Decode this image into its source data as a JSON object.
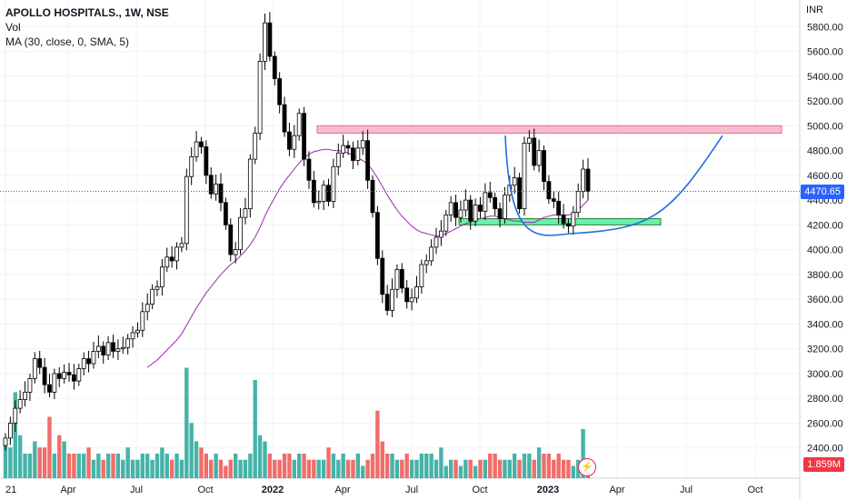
{
  "header": {
    "symbol": "APOLLO HOSPITALS., 1W, NSE",
    "volume_label": "Vol",
    "ma_label": "MA (30, close, 0, SMA, 5)"
  },
  "axis": {
    "currency": "INR",
    "last_price": "4470.65",
    "last_volume": "1.859M"
  },
  "colors": {
    "up": "#26a69a",
    "down": "#000000",
    "vol_up": "#26a69a",
    "vol_down": "#ef5350",
    "ma": "#9c27b0",
    "resistance": "#f8bbd0",
    "support": "#69f0ae",
    "arc": "#1e6fe0"
  },
  "chart_data": {
    "type": "candlestick",
    "title": "APOLLO HOSPITALS., 1W, NSE",
    "ylim": [
      2200,
      6000
    ],
    "y_ticks": [
      2400,
      2600,
      2800,
      3000,
      3200,
      3400,
      3600,
      3800,
      4000,
      4200,
      4400,
      4600,
      4800,
      5000,
      5200,
      5400,
      5600,
      5800
    ],
    "x_tick_labels": [
      "21",
      "Apr",
      "Jul",
      "Oct",
      "2022",
      "Apr",
      "Jul",
      "Oct",
      "2023",
      "Apr",
      "Jul",
      "Oct"
    ],
    "grid": true,
    "close_series": [
      2480,
      2600,
      2720,
      2790,
      2850,
      2960,
      3120,
      3050,
      2910,
      2850,
      3000,
      2960,
      3010,
      2990,
      2940,
      3040,
      3120,
      3080,
      3180,
      3220,
      3150,
      3250,
      3180,
      3200,
      3210,
      3280,
      3330,
      3350,
      3500,
      3560,
      3680,
      3700,
      3860,
      3940,
      3910,
      4020,
      4050,
      4590,
      4750,
      4870,
      4830,
      4600,
      4450,
      4530,
      4380,
      4200,
      3960,
      4000,
      4260,
      4330,
      4730,
      4940,
      5520,
      5830,
      5560,
      5380,
      5170,
      4950,
      4810,
      4920,
      5100,
      4730,
      4560,
      4380,
      4390,
      4520,
      4390,
      4670,
      4780,
      4840,
      4820,
      4720,
      4820,
      4880,
      4560,
      4300,
      3930,
      3640,
      3510,
      3680,
      3840,
      3690,
      3580,
      3610,
      3700,
      3880,
      3910,
      4020,
      4100,
      4150,
      4280,
      4380,
      4260,
      4320,
      4400,
      4230,
      4360,
      4310,
      4460,
      4420,
      4330,
      4250,
      4440,
      4520,
      4580,
      4330,
      4860,
      4900,
      4680,
      4800,
      4550,
      4410,
      4390,
      4280,
      4210,
      4190,
      4300,
      4470,
      4650,
      4470
    ],
    "ma30_series": [
      null,
      null,
      null,
      null,
      null,
      null,
      null,
      null,
      null,
      null,
      null,
      null,
      null,
      null,
      null,
      null,
      null,
      null,
      null,
      null,
      null,
      null,
      null,
      null,
      null,
      null,
      null,
      null,
      null,
      3050,
      3080,
      3110,
      3150,
      3190,
      3230,
      3270,
      3320,
      3390,
      3460,
      3530,
      3590,
      3650,
      3700,
      3750,
      3800,
      3840,
      3880,
      3910,
      3950,
      3990,
      4040,
      4100,
      4180,
      4270,
      4350,
      4420,
      4490,
      4550,
      4600,
      4650,
      4700,
      4740,
      4770,
      4790,
      4800,
      4810,
      4810,
      4800,
      4800,
      4790,
      4780,
      4760,
      4740,
      4720,
      4690,
      4640,
      4580,
      4510,
      4440,
      4380,
      4320,
      4270,
      4230,
      4190,
      4160,
      4140,
      4130,
      4120,
      4110,
      4110,
      4130,
      4150,
      4170,
      4190,
      4210,
      4220,
      4240,
      4250,
      4260,
      4270,
      4270,
      4260,
      4250,
      4240,
      4230,
      4230,
      4220,
      4220,
      4220,
      4240,
      4260,
      4270,
      4280,
      4280,
      4280,
      4280,
      4290,
      4320,
      4360,
      4400
    ],
    "volume_relative": [
      0.3,
      0.25,
      0.7,
      0.35,
      0.2,
      0.2,
      0.3,
      0.25,
      0.25,
      0.5,
      0.2,
      0.35,
      0.3,
      0.2,
      0.2,
      0.2,
      0.2,
      0.25,
      0.15,
      0.2,
      0.15,
      0.2,
      0.2,
      0.2,
      0.15,
      0.25,
      0.15,
      0.15,
      0.2,
      0.2,
      0.15,
      0.2,
      0.25,
      0.2,
      0.15,
      0.2,
      0.15,
      0.9,
      0.45,
      0.3,
      0.25,
      0.2,
      0.15,
      0.2,
      0.15,
      0.1,
      0.15,
      0.2,
      0.15,
      0.15,
      0.2,
      0.8,
      0.35,
      0.3,
      0.2,
      0.15,
      0.15,
      0.2,
      0.2,
      0.15,
      0.2,
      0.2,
      0.15,
      0.15,
      0.15,
      0.15,
      0.25,
      0.2,
      0.15,
      0.2,
      0.15,
      0.15,
      0.2,
      0.1,
      0.15,
      0.2,
      0.55,
      0.3,
      0.2,
      0.2,
      0.15,
      0.15,
      0.2,
      0.15,
      0.15,
      0.2,
      0.2,
      0.2,
      0.15,
      0.25,
      0.1,
      0.15,
      0.15,
      0.1,
      0.15,
      0.15,
      0.1,
      0.15,
      0.15,
      0.2,
      0.2,
      0.15,
      0.15,
      0.15,
      0.2,
      0.15,
      0.2,
      0.2,
      0.15,
      0.25,
      0.2,
      0.2,
      0.15,
      0.2,
      0.15,
      0.15,
      0.1,
      0.15,
      0.4,
      0.15
    ],
    "annotations": {
      "resistance_zone": {
        "x_start_week": 64,
        "x_end_week": 183,
        "y_low": 4940,
        "y_high": 5000
      },
      "support_zone": {
        "x_start_week": 92,
        "x_end_week": 152,
        "y_low": 4200,
        "y_high": 4250
      },
      "rounding_arc": {
        "from": [
          104,
          4920
        ],
        "bottom": [
          118,
          4130
        ],
        "to": [
          165,
          4920
        ]
      }
    }
  }
}
